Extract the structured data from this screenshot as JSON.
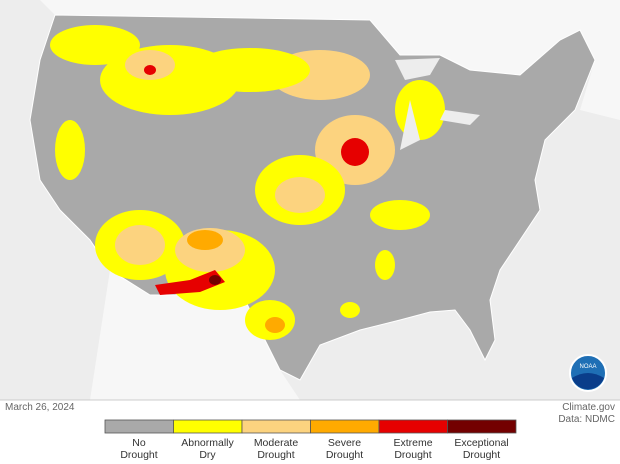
{
  "date": "March 26, 2024",
  "credit": "Climate.gov",
  "source": "Data: NDMC",
  "logo": "NOAA",
  "legend": [
    {
      "label": "No\nDrought",
      "color": "#a9a9a9"
    },
    {
      "label": "Abnormally\nDry",
      "color": "#ffff00"
    },
    {
      "label": "Moderate\nDrought",
      "color": "#fcd37f"
    },
    {
      "label": "Severe\nDrought",
      "color": "#ffaa00"
    },
    {
      "label": "Extreme\nDrought",
      "color": "#e60000"
    },
    {
      "label": "Exceptional\nDrought",
      "color": "#730000"
    }
  ]
}
